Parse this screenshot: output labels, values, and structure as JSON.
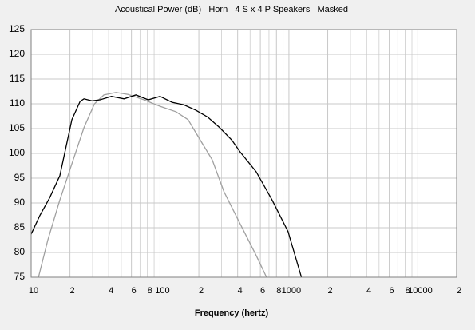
{
  "chart_data": {
    "type": "line",
    "title": "Acoustical Power (dB)   Horn   4 S x 4 P Speakers   Masked",
    "x_label": "Frequency (hertz)",
    "log_x": true,
    "grid": true,
    "xlim": [
      10,
      20000
    ],
    "ylim": [
      75,
      125
    ],
    "xticks": [
      10,
      {
        "value": 20,
        "label": "2"
      },
      {
        "value": 40,
        "label": "4"
      },
      {
        "value": 60,
        "label": "6"
      },
      {
        "value": 80,
        "label": "8"
      },
      100,
      {
        "value": 200,
        "label": "2"
      },
      {
        "value": 400,
        "label": "4"
      },
      {
        "value": 600,
        "label": "6"
      },
      {
        "value": 800,
        "label": "8"
      },
      1000,
      {
        "value": 2000,
        "label": "2"
      },
      {
        "value": 4000,
        "label": "4"
      },
      {
        "value": 6000,
        "label": "6"
      },
      {
        "value": 8000,
        "label": "8"
      },
      10000,
      {
        "value": 20000,
        "label": "2"
      }
    ],
    "xminorticks": [
      30,
      50,
      70,
      90,
      300,
      500,
      700,
      900,
      3000,
      5000,
      7000,
      9000
    ],
    "yticks": [
      75,
      80,
      85,
      90,
      95,
      100,
      105,
      110,
      115,
      120,
      125
    ],
    "series": [
      {
        "color": "#000000",
        "x": [
          10,
          11.7,
          13.9,
          16.7,
          20.7,
          24,
          25.7,
          29.6,
          34.2,
          42,
          52.6,
          65,
          81,
          100,
          124,
          153,
          190,
          235,
          290,
          360,
          418,
          557,
          740,
          985,
          1250
        ],
        "values": [
          83.7,
          87.5,
          91,
          95.5,
          106.8,
          110.5,
          111,
          110.6,
          110.8,
          111.5,
          111,
          111.8,
          110.8,
          111.5,
          110.3,
          109.8,
          108.7,
          107.3,
          105.2,
          102.7,
          100.3,
          96.3,
          90.6,
          84.2,
          75
        ]
      },
      {
        "color": "#a0a0a0",
        "x": [
          11.4,
          13.5,
          16.7,
          20.7,
          25.7,
          31,
          36.7,
          45.5,
          56.5,
          75.1,
          100,
          133,
          165,
          205,
          254,
          313,
          418,
          557,
          670
        ],
        "values": [
          75,
          82.6,
          90.6,
          97.9,
          105.2,
          110,
          111.8,
          112.3,
          111.9,
          110.8,
          109.5,
          108.4,
          106.8,
          102.7,
          98.7,
          92.3,
          85.8,
          79.4,
          75
        ]
      }
    ]
  }
}
